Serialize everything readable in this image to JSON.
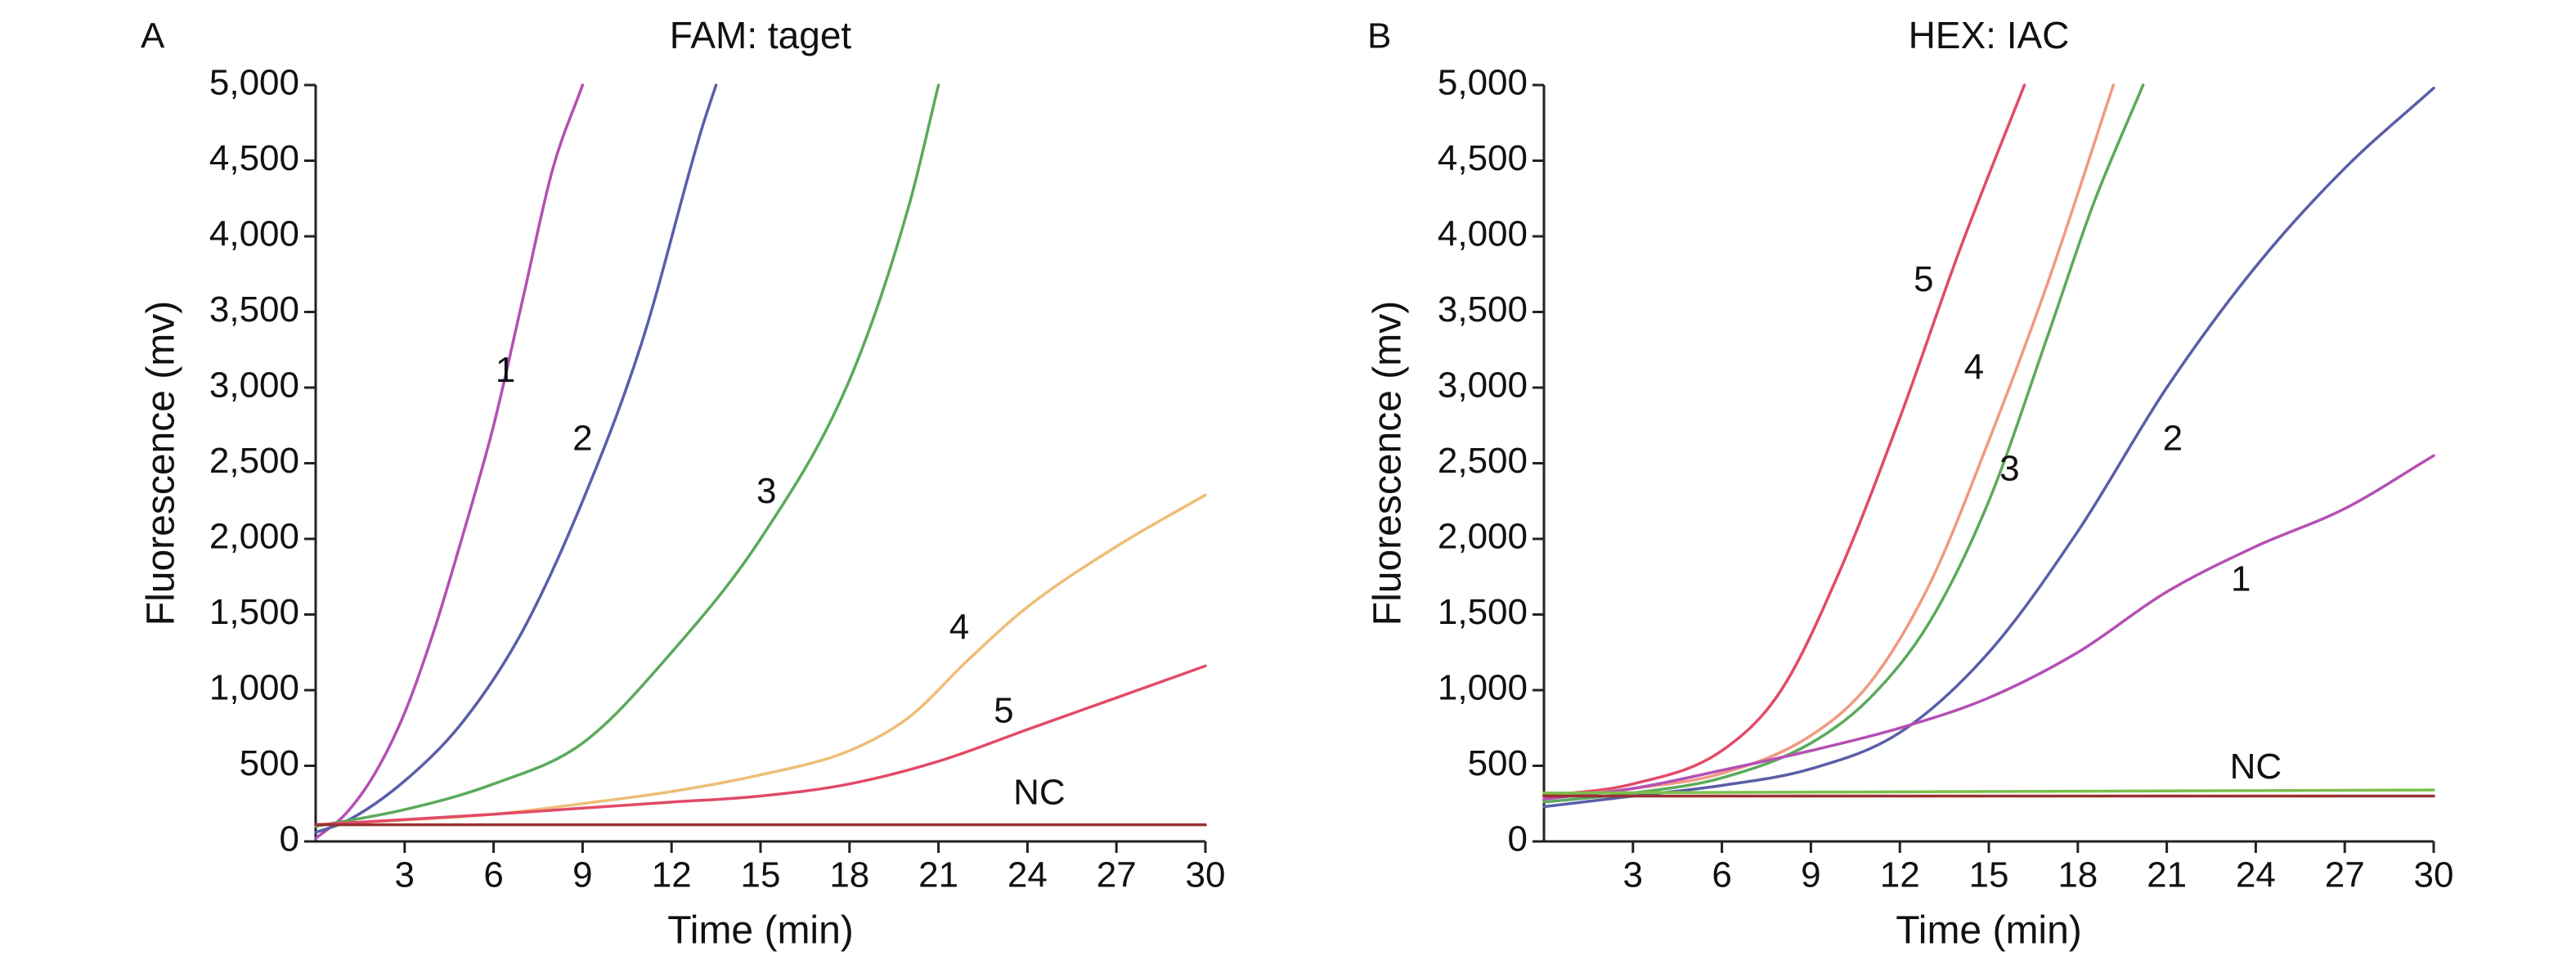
{
  "chart_data": [
    {
      "panel": "A",
      "type": "line",
      "title": "FAM: taget",
      "xlabel": "Time (min)",
      "ylabel": "Fluorescence (mv)",
      "xlim": [
        0,
        30
      ],
      "ylim": [
        0,
        5000
      ],
      "xticks": [
        3,
        6,
        9,
        12,
        15,
        18,
        21,
        24,
        27,
        30
      ],
      "xtick_labels": [
        "3",
        "6",
        "9",
        "12",
        "15",
        "18",
        "21",
        "24",
        "27",
        "30"
      ],
      "yticks": [
        0,
        500,
        1000,
        1500,
        2000,
        2500,
        3000,
        3500,
        4000,
        4500,
        5000
      ],
      "ytick_labels": [
        "0",
        "500",
        "1,000",
        "1,500",
        "2,000",
        "2,500",
        "3,000",
        "3,500",
        "4,000",
        "4,500",
        "5,000"
      ],
      "series": [
        {
          "name": "1",
          "color": "#b44fb4",
          "x": [
            0,
            1,
            2,
            3,
            4,
            5,
            6,
            7,
            8,
            9
          ],
          "y": [
            20,
            180,
            450,
            850,
            1400,
            2050,
            2750,
            3600,
            4450,
            5000
          ],
          "label_at": [
            6.4,
            3100
          ]
        },
        {
          "name": "2",
          "color": "#5a5ea8",
          "x": [
            0,
            1,
            3,
            5,
            7,
            9,
            11,
            13,
            13.5
          ],
          "y": [
            60,
            130,
            400,
            800,
            1400,
            2250,
            3300,
            4700,
            5000
          ],
          "label_at": [
            9.0,
            2650
          ]
        },
        {
          "name": "3",
          "color": "#5aaa5a",
          "x": [
            0,
            3,
            6,
            9,
            12,
            15,
            18,
            20,
            21
          ],
          "y": [
            100,
            210,
            380,
            650,
            1250,
            2000,
            3050,
            4200,
            5000
          ],
          "label_at": [
            15.2,
            2300
          ]
        },
        {
          "name": "4",
          "color": "#efbd76",
          "x": [
            0,
            6,
            9,
            12,
            15,
            18,
            20,
            22,
            24,
            27,
            30
          ],
          "y": [
            110,
            180,
            250,
            330,
            440,
            600,
            820,
            1200,
            1550,
            1950,
            2290
          ],
          "label_at": [
            21.7,
            1400
          ]
        },
        {
          "name": "5",
          "color": "#e24a67",
          "x": [
            0,
            6,
            9,
            12,
            15,
            18,
            21,
            24,
            27,
            30
          ],
          "y": [
            110,
            180,
            220,
            260,
            300,
            380,
            530,
            740,
            950,
            1160
          ],
          "label_at": [
            23.2,
            850
          ]
        },
        {
          "name": "NC",
          "color": "#9a3232",
          "x": [
            0,
            30
          ],
          "y": [
            110,
            110
          ],
          "label_at": [
            24.4,
            310
          ]
        }
      ]
    },
    {
      "panel": "B",
      "type": "line",
      "title": "HEX: IAC",
      "xlabel": "Time (min)",
      "ylabel": "Fluorescence (mv)",
      "xlim": [
        0,
        30
      ],
      "ylim": [
        0,
        5000
      ],
      "xticks": [
        3,
        6,
        9,
        12,
        15,
        18,
        21,
        24,
        27,
        30
      ],
      "xtick_labels": [
        "3",
        "6",
        "9",
        "12",
        "15",
        "18",
        "21",
        "24",
        "27",
        "30"
      ],
      "yticks": [
        0,
        500,
        1000,
        1500,
        2000,
        2500,
        3000,
        3500,
        4000,
        4500,
        5000
      ],
      "ytick_labels": [
        "0",
        "500",
        "1,000",
        "1,500",
        "2,000",
        "2,500",
        "3,000",
        "3,500",
        "4,000",
        "4,500",
        "5,000"
      ],
      "series": [
        {
          "name": "5",
          "color": "#e24a67",
          "x": [
            0,
            3,
            6,
            8,
            10,
            12,
            14,
            16.2
          ],
          "y": [
            300,
            380,
            600,
            1000,
            1800,
            2800,
            3900,
            5000
          ],
          "label_at": [
            12.8,
            3700
          ]
        },
        {
          "name": "4",
          "color": "#f09a80",
          "x": [
            0,
            3,
            6,
            9,
            11,
            13,
            15,
            17,
            19.2
          ],
          "y": [
            290,
            350,
            450,
            700,
            1050,
            1700,
            2650,
            3700,
            5000
          ],
          "label_at": [
            14.5,
            3120
          ]
        },
        {
          "name": "3",
          "color": "#5aaa5a",
          "x": [
            0,
            3,
            6,
            9,
            11,
            13,
            15,
            17,
            18.5,
            20.2
          ],
          "y": [
            260,
            320,
            420,
            650,
            950,
            1450,
            2250,
            3350,
            4200,
            5000
          ],
          "label_at": [
            15.7,
            2450
          ]
        },
        {
          "name": "2",
          "color": "#5a5ea8",
          "x": [
            0,
            3,
            6,
            9,
            12,
            15,
            18,
            21,
            24,
            27,
            30
          ],
          "y": [
            230,
            300,
            370,
            480,
            720,
            1250,
            2050,
            3000,
            3800,
            4450,
            4980
          ],
          "label_at": [
            21.2,
            2650
          ]
        },
        {
          "name": "1",
          "color": "#b44fb4",
          "x": [
            0,
            3,
            6,
            9,
            12,
            15,
            18,
            21,
            24,
            27,
            30
          ],
          "y": [
            280,
            350,
            470,
            600,
            750,
            950,
            1250,
            1650,
            1950,
            2200,
            2550
          ],
          "label_at": [
            23.5,
            1720
          ]
        },
        {
          "name": "NC",
          "color": "#7bc04b",
          "x": [
            0,
            30
          ],
          "y": [
            320,
            340
          ],
          "label_at": [
            24.0,
            480
          ]
        },
        {
          "name": "",
          "color": "#9a3232",
          "x": [
            0,
            30
          ],
          "y": [
            300,
            300
          ],
          "label_at": null
        }
      ]
    }
  ]
}
